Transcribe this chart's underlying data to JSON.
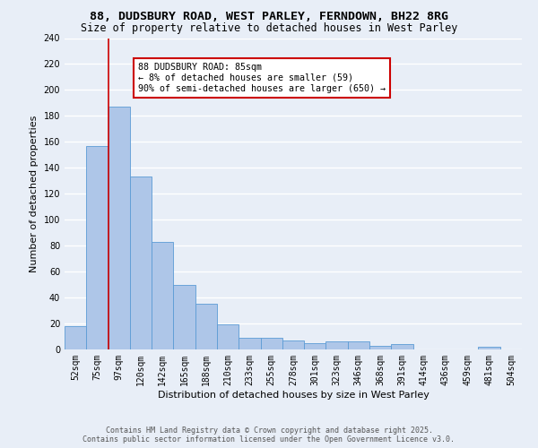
{
  "title_line1": "88, DUDSBURY ROAD, WEST PARLEY, FERNDOWN, BH22 8RG",
  "title_line2": "Size of property relative to detached houses in West Parley",
  "xlabel": "Distribution of detached houses by size in West Parley",
  "ylabel": "Number of detached properties",
  "categories": [
    "52sqm",
    "75sqm",
    "97sqm",
    "120sqm",
    "142sqm",
    "165sqm",
    "188sqm",
    "210sqm",
    "233sqm",
    "255sqm",
    "278sqm",
    "301sqm",
    "323sqm",
    "346sqm",
    "368sqm",
    "391sqm",
    "414sqm",
    "436sqm",
    "459sqm",
    "481sqm",
    "504sqm"
  ],
  "values": [
    18,
    157,
    187,
    133,
    83,
    50,
    35,
    19,
    9,
    9,
    7,
    5,
    6,
    6,
    3,
    4,
    0,
    0,
    0,
    2,
    0
  ],
  "bar_color": "#aec6e8",
  "bar_edge_color": "#5b9bd5",
  "property_line_x": 1.5,
  "annotation_title": "88 DUDSBURY ROAD: 85sqm",
  "annotation_line2": "← 8% of detached houses are smaller (59)",
  "annotation_line3": "90% of semi-detached houses are larger (650) →",
  "annotation_box_color": "#ffffff",
  "annotation_box_edge": "#cc0000",
  "footer_line1": "Contains HM Land Registry data © Crown copyright and database right 2025.",
  "footer_line2": "Contains public sector information licensed under the Open Government Licence v3.0.",
  "ylim": [
    0,
    240
  ],
  "yticks": [
    0,
    20,
    40,
    60,
    80,
    100,
    120,
    140,
    160,
    180,
    200,
    220,
    240
  ],
  "background_color": "#e8eef7",
  "grid_color": "#ffffff",
  "title_fontsize": 9.5,
  "subtitle_fontsize": 8.5,
  "axis_label_fontsize": 8,
  "tick_fontsize": 7
}
